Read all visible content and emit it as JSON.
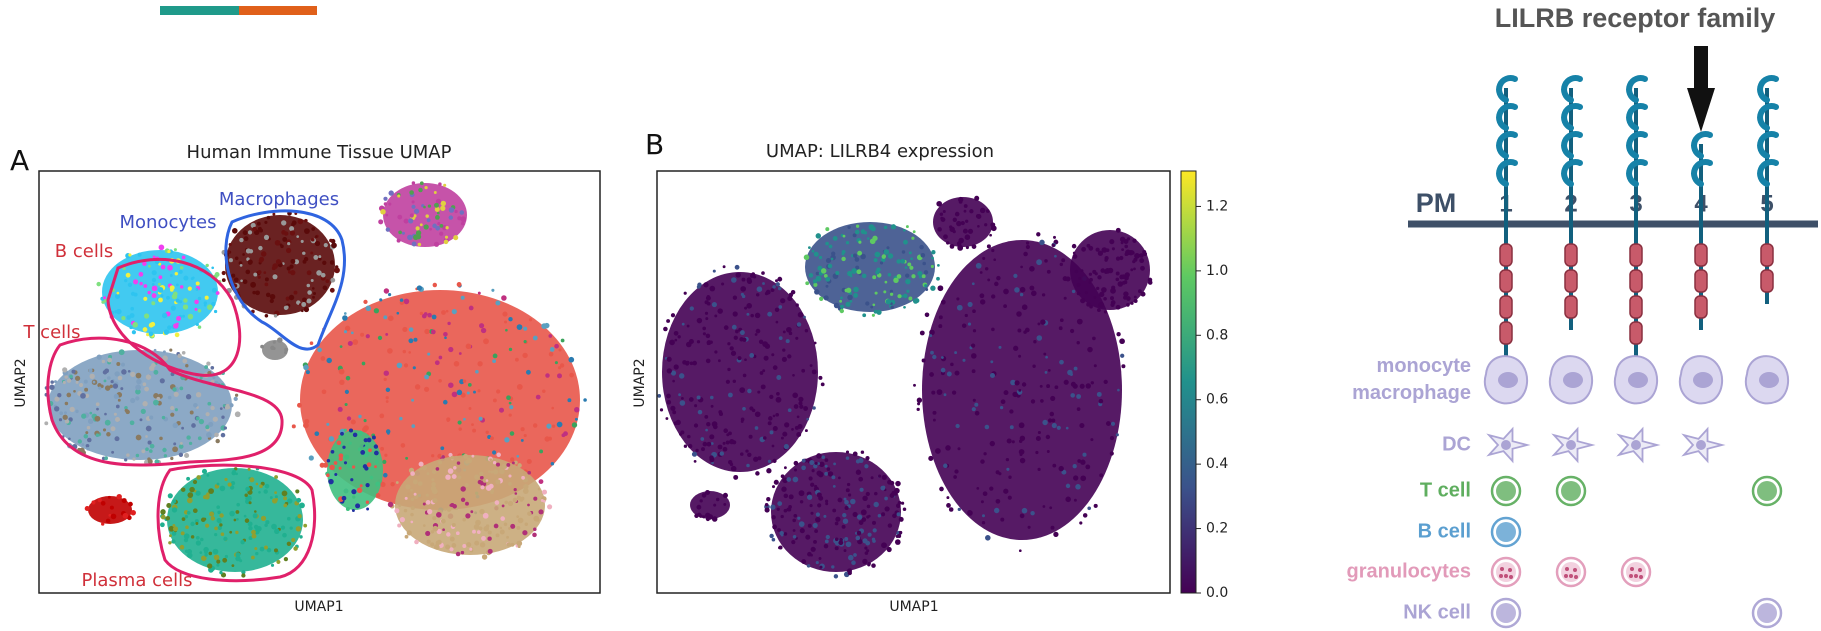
{
  "panel_a": {
    "label": "A",
    "title": "Human Immune Tissue UMAP",
    "xlabel": "UMAP1",
    "ylabel": "UMAP2",
    "annotations": [
      {
        "text": "Macrophages",
        "color": "#3f4fc2"
      },
      {
        "text": "Monocytes",
        "color": "#3f4fc2"
      },
      {
        "text": "B cells",
        "color": "#d0303a"
      },
      {
        "text": "T cells",
        "color": "#d0303a"
      },
      {
        "text": "Plasma cells",
        "color": "#d0303a"
      }
    ]
  },
  "panel_b": {
    "label": "B",
    "title": "UMAP: LILRB4 expression",
    "xlabel": "UMAP1",
    "ylabel": "UMAP2",
    "colorbar": {
      "lim": [
        0,
        1.31
      ],
      "ticks": [
        {
          "value": 0,
          "label": "0.0"
        },
        0.2,
        0.4,
        0.6,
        0.8,
        {
          "value": 1,
          "label": "1.0"
        },
        1.2
      ],
      "colormap": [
        "#440154",
        "#3b528b",
        "#21918c",
        "#5ec962",
        "#fde725"
      ]
    }
  },
  "panel_c": {
    "title": "LILRB receptor family",
    "membrane_label": "PM",
    "receptors": [
      {
        "label": "1",
        "extracellular_domains": 4,
        "intracellular_motifs": 4,
        "highlighted": false
      },
      {
        "label": "2",
        "extracellular_domains": 4,
        "intracellular_motifs": 3,
        "highlighted": false
      },
      {
        "label": "3",
        "extracellular_domains": 4,
        "intracellular_motifs": 4,
        "highlighted": false
      },
      {
        "label": "4",
        "extracellular_domains": 2,
        "intracellular_motifs": 3,
        "highlighted": true
      },
      {
        "label": "5",
        "extracellular_domains": 4,
        "intracellular_motifs": 2,
        "highlighted": false
      }
    ],
    "cell_types": [
      {
        "lines": [
          "monocyte",
          "macrophage"
        ],
        "color": "#aba4d4",
        "shape": "macrophage",
        "present": [
          true,
          true,
          true,
          true,
          true
        ]
      },
      {
        "lines": [
          "DC"
        ],
        "color": "#aba4d4",
        "shape": "dendritic",
        "present": [
          true,
          true,
          true,
          true,
          false
        ]
      },
      {
        "lines": [
          "T cell"
        ],
        "color": "#5fae5f",
        "shape": "round",
        "present": [
          true,
          true,
          false,
          false,
          true
        ]
      },
      {
        "lines": [
          "B cell"
        ],
        "color": "#5b9fd0",
        "shape": "round",
        "present": [
          true,
          false,
          false,
          false,
          false
        ]
      },
      {
        "lines": [
          "granulocytes"
        ],
        "color": "#e29ab9",
        "shape": "granule",
        "present": [
          true,
          true,
          true,
          false,
          false
        ]
      },
      {
        "lines": [
          "NK cell"
        ],
        "color": "#aba4d4",
        "shape": "round",
        "present": [
          true,
          false,
          false,
          false,
          true
        ]
      }
    ]
  }
}
